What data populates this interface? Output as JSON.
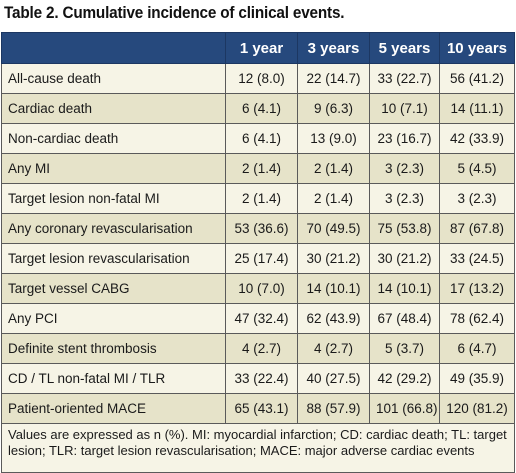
{
  "title": "Table 2. Cumulative incidence of clinical events.",
  "columns": [
    "",
    "1 year",
    "3 years",
    "5 years",
    "10 years"
  ],
  "rows": [
    {
      "label": "All-cause death",
      "values": [
        "12 (8.0)",
        "22 (14.7)",
        "33 (22.7)",
        "56 (41.2)"
      ]
    },
    {
      "label": "Cardiac death",
      "values": [
        "6 (4.1)",
        "9 (6.3)",
        "10 (7.1)",
        "14 (11.1)"
      ]
    },
    {
      "label": "Non-cardiac death",
      "values": [
        "6 (4.1)",
        "13 (9.0)",
        "23 (16.7)",
        "42 (33.9)"
      ]
    },
    {
      "label": "Any MI",
      "values": [
        "2 (1.4)",
        "2 (1.4)",
        "3 (2.3)",
        "5 (4.5)"
      ]
    },
    {
      "label": "Target lesion non-fatal MI",
      "values": [
        "2 (1.4)",
        "2 (1.4)",
        "3 (2.3)",
        "3 (2.3)"
      ]
    },
    {
      "label": "Any coronary revascularisation",
      "values": [
        "53 (36.6)",
        "70 (49.5)",
        "75 (53.8)",
        "87 (67.8)"
      ]
    },
    {
      "label": "Target lesion revascularisation",
      "values": [
        "25 (17.4)",
        "30 (21.2)",
        "30 (21.2)",
        "33 (24.5)"
      ]
    },
    {
      "label": "Target vessel CABG",
      "values": [
        "10 (7.0)",
        "14 (10.1)",
        "14 (10.1)",
        "17 (13.2)"
      ]
    },
    {
      "label": "Any PCI",
      "values": [
        "47 (32.4)",
        "62 (43.9)",
        "67 (48.4)",
        "78 (62.4)"
      ]
    },
    {
      "label": "Definite stent thrombosis",
      "values": [
        "4 (2.7)",
        "4 (2.7)",
        "5 (3.7)",
        "6 (4.7)"
      ]
    },
    {
      "label": "CD / TL non-fatal MI / TLR",
      "values": [
        "33 (22.4)",
        "40 (27.5)",
        "42 (29.2)",
        "49 (35.9)"
      ]
    },
    {
      "label": "Patient-oriented MACE",
      "values": [
        "65 (43.1)",
        "88 (57.9)",
        "101 (66.8)",
        "120 (81.2)"
      ]
    }
  ],
  "footnote": "Values are expressed as n (%). MI: myocardial infarction; CD: cardiac death; TL: target lesion; TLR: target lesion revascularisation; MACE: major adverse cardiac events",
  "colors": {
    "header_bg": "#26497d",
    "row_light": "#f6f4e6",
    "row_dark": "#e6e3c9"
  }
}
